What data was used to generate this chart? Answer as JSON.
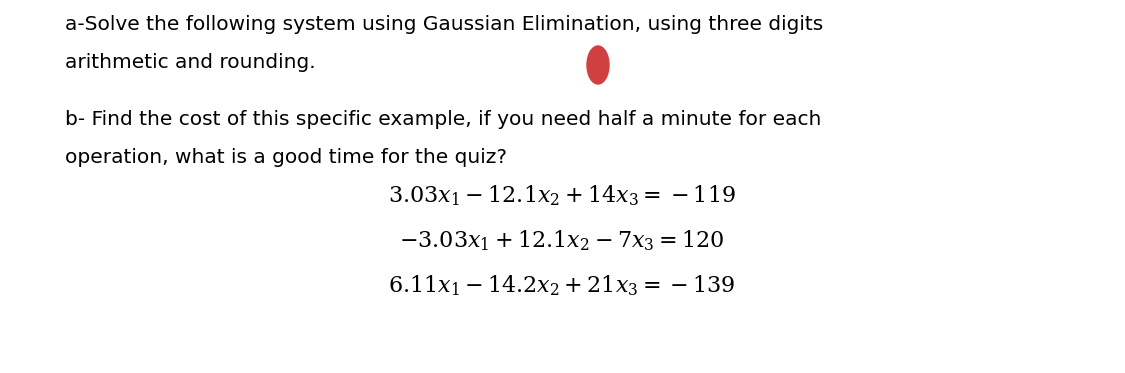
{
  "background_color": "#ffffff",
  "text_color": "#000000",
  "red_dot_color": "#d04040",
  "para_a": "a-Solve the following system using Gaussian Elimination, using three digits\narithmetic and rounding.",
  "para_b": "b- Find the cost of this specific example, if you need half a minute for each\noperation, what is a good time for the quiz?",
  "eq1": "$3.03x_1 \\minus 12.1x_2 + 14x_3 = -119$",
  "eq2": "$-3.03x_1 + 12.1x_2 \\minus 7x_3 = 120$",
  "eq3": "$6.11x_1 \\minus 14.2x_2 + 21x_3 = -139$",
  "font_size_text": 14.5,
  "font_size_eq": 16,
  "figwidth": 11.25,
  "figheight": 3.73,
  "dpi": 100
}
